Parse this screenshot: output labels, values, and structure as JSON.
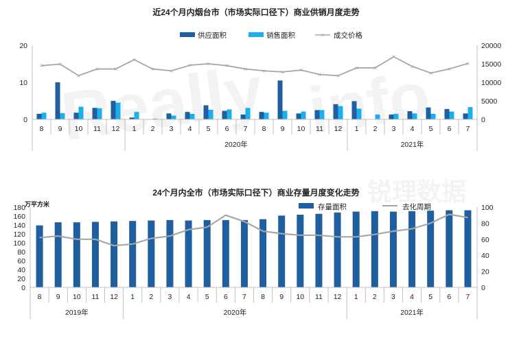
{
  "watermark": {
    "latin": "Really",
    "latin2": "info",
    "chinese": "锐理数据"
  },
  "colors": {
    "supply": "#1f5f9f",
    "sales": "#1ab0ec",
    "price": "#a6a6a6",
    "stock": "#1f5f9f",
    "cycle": "#a6a6a6",
    "axis": "#bfbfbf"
  },
  "chart_data": [
    {
      "type": "bar",
      "title": "近24个月内烟台市（市场实际口径下）商业供销月度走势",
      "categories": [
        "8",
        "9",
        "10",
        "11",
        "12",
        "1",
        "2",
        "3",
        "4",
        "5",
        "6",
        "7",
        "8",
        "9",
        "10",
        "11",
        "12",
        "1",
        "2",
        "3",
        "4",
        "5",
        "6",
        "7"
      ],
      "year_labels": [
        {
          "label": "2020年"
        },
        {
          "label": "2021年"
        }
      ],
      "series": [
        {
          "name": "供应面积",
          "kind": "bar",
          "axis": "left",
          "values": [
            1.5,
            10,
            1.8,
            3.1,
            5,
            0.5,
            0,
            1.6,
            2,
            3.8,
            2.3,
            1.3,
            2,
            10.5,
            1.6,
            2.5,
            4.1,
            4.9,
            0,
            1.3,
            2.2,
            3.2,
            2.8,
            1.6
          ]
        },
        {
          "name": "销售面积",
          "kind": "bar",
          "axis": "left",
          "values": [
            1.8,
            1.7,
            3.4,
            3,
            4.5,
            2,
            0.2,
            1,
            1.5,
            2.6,
            2.7,
            3.1,
            1.8,
            2.3,
            2.1,
            2.5,
            3.6,
            2.9,
            1.3,
            1.5,
            1.6,
            1.5,
            2.1,
            3.3
          ]
        },
        {
          "name": "成交价格",
          "kind": "line",
          "axis": "right",
          "values": [
            14500,
            14900,
            11800,
            13600,
            13600,
            16100,
            13600,
            13100,
            14600,
            15000,
            14500,
            13600,
            13100,
            12800,
            13300,
            12100,
            11800,
            13900,
            13900,
            16900,
            14300,
            12500,
            13600,
            15100
          ]
        }
      ],
      "y_left": {
        "range": [
          0,
          20
        ],
        "ticks": [
          "0",
          "10",
          "20"
        ]
      },
      "y_right": {
        "range": [
          0,
          20000
        ],
        "ticks": [
          "0",
          "5000",
          "10000",
          "15000",
          "20000"
        ]
      },
      "legend_position": "top-center",
      "grid": false
    },
    {
      "type": "bar",
      "title": "24个月内全市（市场实际口径下）商业存量月度变化走势",
      "unit_label": "万平方米",
      "categories": [
        "8",
        "9",
        "10",
        "11",
        "12",
        "1",
        "2",
        "3",
        "4",
        "5",
        "6",
        "7",
        "8",
        "9",
        "10",
        "11",
        "12",
        "1",
        "2",
        "3",
        "4",
        "5",
        "6",
        "7"
      ],
      "year_labels": [
        {
          "label": "2019年"
        },
        {
          "label": "2020年"
        },
        {
          "label": "2021年"
        }
      ],
      "series": [
        {
          "name": "存量面积",
          "kind": "bar",
          "axis": "left",
          "values": [
            139,
            146,
            146,
            147,
            148,
            149,
            150,
            151,
            150,
            151,
            151,
            151,
            153,
            161,
            163,
            165,
            168,
            170,
            171,
            170,
            171,
            172,
            173,
            173
          ]
        },
        {
          "name": "去化周期",
          "kind": "line",
          "axis": "right",
          "values": [
            62,
            64,
            60,
            60,
            52,
            54,
            61,
            64,
            72,
            75,
            90,
            82,
            70,
            67,
            65,
            65,
            63,
            63,
            66,
            70,
            73,
            80,
            91,
            87
          ]
        }
      ],
      "y_left": {
        "range": [
          0,
          180
        ],
        "ticks": [
          "0",
          "20",
          "40",
          "60",
          "80",
          "100",
          "120",
          "140",
          "160",
          "180"
        ]
      },
      "y_right": {
        "range": [
          0,
          100
        ],
        "ticks": [
          "0",
          "20",
          "40",
          "60",
          "80",
          "100"
        ]
      },
      "legend_position": "top-center",
      "grid": false
    }
  ]
}
